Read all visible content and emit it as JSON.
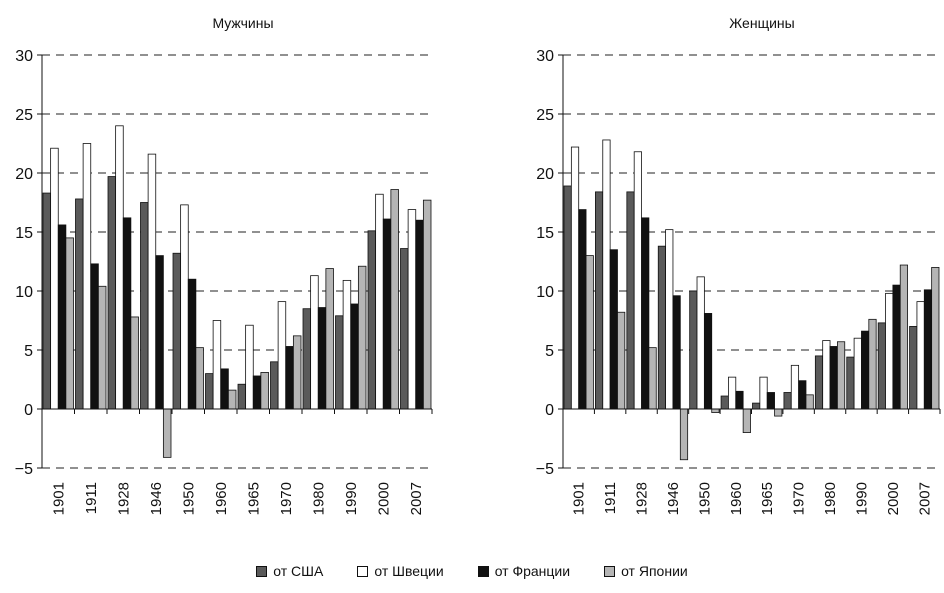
{
  "colors": {
    "usa": "#5a5a5a",
    "sweden": "#ffffff",
    "france": "#111111",
    "japan": "#b5b5b5",
    "grid": "#222222"
  },
  "legend": [
    {
      "label": "от США",
      "color": "#5a5a5a"
    },
    {
      "label": "от Швеции",
      "color": "#ffffff"
    },
    {
      "label": "от Франции",
      "color": "#111111"
    },
    {
      "label": "от Японии",
      "color": "#b5b5b5"
    }
  ],
  "chart_data": [
    {
      "type": "bar",
      "title": "Мужчины",
      "xlabel": "",
      "ylabel": "",
      "ylim": [
        -5,
        30
      ],
      "yticks": [
        "30",
        "25",
        "20",
        "15",
        "10",
        "5",
        "0",
        "−5"
      ],
      "grid": "dashed-horizontal",
      "categories": [
        "1901",
        "1911",
        "1928",
        "1946",
        "1950",
        "1960",
        "1965",
        "1970",
        "1980",
        "1990",
        "2000",
        "2007"
      ],
      "series": [
        {
          "name": "от США",
          "values": [
            18.3,
            17.8,
            19.7,
            17.5,
            13.2,
            3.0,
            2.1,
            4.0,
            8.5,
            7.9,
            15.1,
            13.6
          ]
        },
        {
          "name": "от Швеции",
          "values": [
            22.1,
            22.5,
            24.0,
            21.6,
            17.3,
            7.5,
            7.1,
            9.1,
            11.3,
            10.9,
            18.2,
            16.9
          ]
        },
        {
          "name": "от Франции",
          "values": [
            15.6,
            12.3,
            16.2,
            13.0,
            11.0,
            3.4,
            2.8,
            5.3,
            8.6,
            8.9,
            16.1,
            16.0
          ]
        },
        {
          "name": "от Японии",
          "values": [
            14.5,
            10.4,
            7.8,
            -4.1,
            5.2,
            1.6,
            3.1,
            6.2,
            11.9,
            12.1,
            18.6,
            17.7
          ]
        }
      ]
    },
    {
      "type": "bar",
      "title": "Женщины",
      "xlabel": "",
      "ylabel": "",
      "ylim": [
        -5,
        30
      ],
      "yticks": [
        "30",
        "25",
        "20",
        "15",
        "10",
        "5",
        "0",
        "−5"
      ],
      "grid": "dashed-horizontal",
      "categories": [
        "1901",
        "1911",
        "1928",
        "1946",
        "1950",
        "1960",
        "1965",
        "1970",
        "1980",
        "1990",
        "2000",
        "2007"
      ],
      "series": [
        {
          "name": "от США",
          "values": [
            18.9,
            18.4,
            18.4,
            13.8,
            10.0,
            1.1,
            0.5,
            1.4,
            4.5,
            4.4,
            7.3,
            7.0
          ]
        },
        {
          "name": "от Швеции",
          "values": [
            22.2,
            22.8,
            21.8,
            15.2,
            11.2,
            2.7,
            2.7,
            3.7,
            5.8,
            6.0,
            9.8,
            9.1
          ]
        },
        {
          "name": "от Франции",
          "values": [
            16.9,
            13.5,
            16.2,
            9.6,
            8.1,
            1.5,
            1.4,
            2.4,
            5.3,
            6.6,
            10.5,
            10.1
          ]
        },
        {
          "name": "от Японии",
          "values": [
            13.0,
            8.2,
            5.2,
            -4.3,
            -0.3,
            -2.0,
            -0.6,
            1.2,
            5.7,
            7.6,
            12.2,
            12.0
          ]
        }
      ]
    }
  ]
}
